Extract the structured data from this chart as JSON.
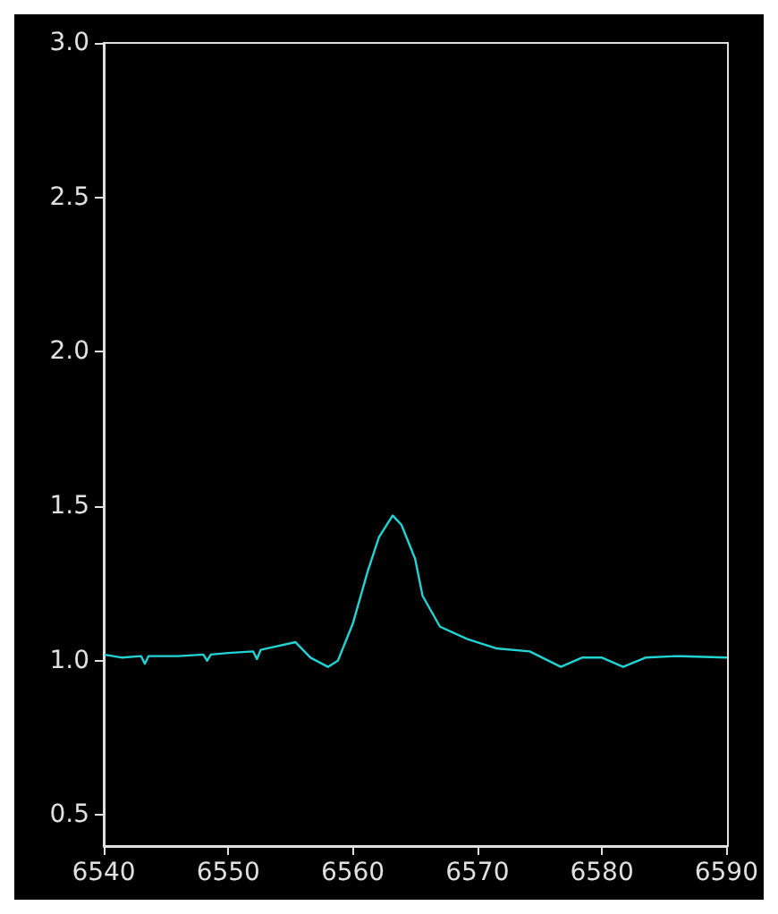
{
  "chart_data": {
    "type": "line",
    "x": [
      6540,
      6541.5,
      6543,
      6543.3,
      6543.6,
      6546,
      6548,
      6548.3,
      6548.6,
      6550,
      6552,
      6552.3,
      6552.6,
      6555.4,
      6556.6,
      6558,
      6558.8,
      6560,
      6561.2,
      6562.1,
      6563.2,
      6563.9,
      6565,
      6565.6,
      6567,
      6569.2,
      6571.5,
      6574.2,
      6576.7,
      6578.4,
      6580,
      6581.7,
      6583.5,
      6586,
      6590
    ],
    "series": [
      {
        "color": "#22d3d3",
        "values": [
          1.02,
          1.01,
          1.015,
          0.99,
          1.015,
          1.015,
          1.02,
          1.0,
          1.02,
          1.025,
          1.03,
          1.005,
          1.035,
          1.06,
          1.01,
          0.98,
          1.0,
          1.12,
          1.29,
          1.4,
          1.47,
          1.44,
          1.33,
          1.21,
          1.11,
          1.07,
          1.04,
          1.03,
          0.98,
          1.01,
          1.01,
          0.98,
          1.01,
          1.015,
          1.01
        ]
      }
    ],
    "xlim": [
      6540,
      6590
    ],
    "xticks": [
      6540,
      6550,
      6560,
      6570,
      6580,
      6590
    ],
    "ylim": [
      0.4,
      3.0
    ],
    "yticks": [
      0.5,
      {
        "value": 1,
        "label": "1.0"
      },
      1.5,
      {
        "value": 2,
        "label": "2.0"
      },
      2.5,
      {
        "value": 3,
        "label": "3.0"
      }
    ],
    "marker": "none",
    "line_style": "solid"
  }
}
